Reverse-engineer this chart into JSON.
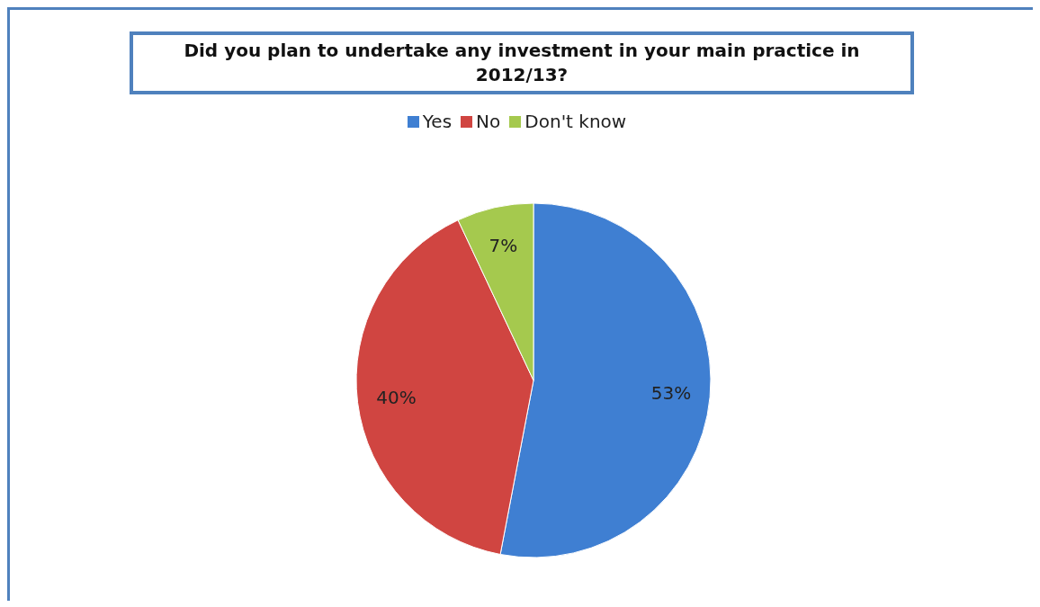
{
  "chart_data": {
    "type": "pie",
    "title": "Did you plan to undertake any investment in your main practice in 2012/13?",
    "categories": [
      "Yes",
      "No",
      "Don't know"
    ],
    "values": [
      53,
      40,
      7
    ],
    "colors": [
      "#3f7fd2",
      "#d04541",
      "#a5c94e"
    ],
    "value_labels": [
      "53%",
      "40%",
      "7%"
    ],
    "legend": "top"
  }
}
